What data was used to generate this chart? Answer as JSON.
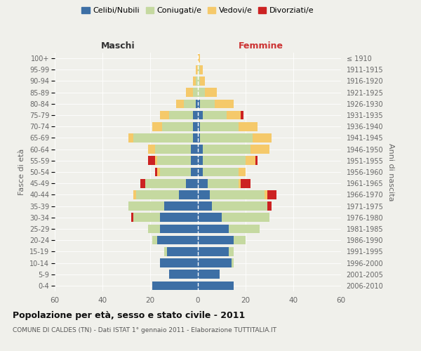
{
  "age_groups": [
    "0-4",
    "5-9",
    "10-14",
    "15-19",
    "20-24",
    "25-29",
    "30-34",
    "35-39",
    "40-44",
    "45-49",
    "50-54",
    "55-59",
    "60-64",
    "65-69",
    "70-74",
    "75-79",
    "80-84",
    "85-89",
    "90-94",
    "95-99",
    "100+"
  ],
  "birth_years": [
    "2006-2010",
    "2001-2005",
    "1996-2000",
    "1991-1995",
    "1986-1990",
    "1981-1985",
    "1976-1980",
    "1971-1975",
    "1966-1970",
    "1961-1965",
    "1956-1960",
    "1951-1955",
    "1946-1950",
    "1941-1945",
    "1936-1940",
    "1931-1935",
    "1926-1930",
    "1921-1925",
    "1916-1920",
    "1911-1915",
    "≤ 1910"
  ],
  "colors": {
    "celibe": "#3d6fa5",
    "coniugato": "#c5d9a0",
    "vedovo": "#f5c96a",
    "divorziato": "#cc2222"
  },
  "maschi": {
    "celibe": [
      19,
      12,
      16,
      13,
      17,
      16,
      16,
      14,
      8,
      5,
      3,
      3,
      3,
      2,
      2,
      2,
      1,
      0,
      0,
      0,
      0
    ],
    "coniugato": [
      0,
      0,
      0,
      1,
      2,
      5,
      11,
      15,
      18,
      17,
      13,
      14,
      15,
      25,
      13,
      10,
      5,
      2,
      1,
      0,
      0
    ],
    "vedovo": [
      0,
      0,
      0,
      0,
      0,
      0,
      0,
      0,
      1,
      0,
      1,
      1,
      3,
      2,
      4,
      4,
      3,
      3,
      1,
      1,
      0
    ],
    "divorziato": [
      0,
      0,
      0,
      0,
      0,
      0,
      1,
      0,
      0,
      2,
      1,
      3,
      0,
      0,
      0,
      0,
      0,
      0,
      0,
      0,
      0
    ]
  },
  "femmine": {
    "celibe": [
      15,
      9,
      14,
      13,
      15,
      13,
      10,
      6,
      5,
      4,
      2,
      2,
      2,
      1,
      1,
      2,
      1,
      0,
      0,
      0,
      0
    ],
    "coniugato": [
      0,
      0,
      1,
      2,
      5,
      13,
      20,
      23,
      23,
      13,
      15,
      18,
      20,
      22,
      16,
      10,
      6,
      3,
      1,
      1,
      0
    ],
    "vedovo": [
      0,
      0,
      0,
      0,
      0,
      0,
      0,
      0,
      1,
      1,
      3,
      4,
      8,
      8,
      8,
      6,
      8,
      5,
      2,
      1,
      1
    ],
    "divorziato": [
      0,
      0,
      0,
      0,
      0,
      0,
      0,
      2,
      4,
      4,
      0,
      1,
      0,
      0,
      0,
      1,
      0,
      0,
      0,
      0,
      0
    ]
  },
  "title": "Popolazione per età, sesso e stato civile - 2011",
  "subtitle": "COMUNE DI CALDES (TN) - Dati ISTAT 1° gennaio 2011 - Elaborazione TUTTITALIA.IT",
  "xlabel_left": "Maschi",
  "xlabel_right": "Femmine",
  "ylabel_left": "Fasce di età",
  "ylabel_right": "Anni di nascita",
  "xlim": 60,
  "background_color": "#f0f0eb",
  "legend_labels": [
    "Celibi/Nubili",
    "Coniugati/e",
    "Vedovi/e",
    "Divorziati/e"
  ]
}
